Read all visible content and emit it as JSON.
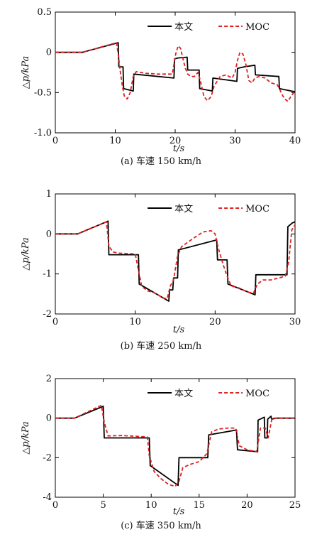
{
  "chart_data": [
    {
      "type": "line",
      "caption": "(a) 车速 150 km/h",
      "xlabel": "t/s",
      "ylabel": "△p/kPa",
      "xlim": [
        0,
        40
      ],
      "ylim": [
        -1.0,
        0.5
      ],
      "xticks": [
        0,
        10,
        20,
        30,
        40
      ],
      "xtick_labels": [
        "0",
        "10",
        "20",
        "30",
        "40"
      ],
      "yticks": [
        0.5,
        0,
        -0.5,
        -1.0
      ],
      "ytick_labels": [
        "0.5",
        "0",
        "-0.5",
        "-1.0"
      ],
      "legend_position": "top-right",
      "series": [
        {
          "name": "本文",
          "color": "#000000",
          "style": "solid",
          "x": [
            0,
            4.5,
            10.5,
            10.6,
            11.3,
            11.4,
            13.0,
            13.1,
            19.8,
            19.9,
            20.5,
            22.0,
            22.1,
            24.0,
            24.1,
            26.2,
            26.3,
            30.3,
            30.4,
            31.5,
            33.3,
            33.4,
            37.3,
            37.4,
            40
          ],
          "y": [
            0,
            0,
            0.12,
            -0.18,
            -0.18,
            -0.45,
            -0.48,
            -0.27,
            -0.32,
            -0.08,
            -0.07,
            -0.06,
            -0.22,
            -0.22,
            -0.45,
            -0.48,
            -0.32,
            -0.36,
            -0.2,
            -0.18,
            -0.16,
            -0.28,
            -0.3,
            -0.45,
            -0.49
          ]
        },
        {
          "name": "MOC",
          "color": "#dd2222",
          "style": "dashed",
          "x": [
            0,
            4.5,
            10.2,
            10.5,
            10.8,
            11.2,
            11.5,
            12.0,
            12.5,
            13.0,
            13.5,
            15,
            17,
            19.5,
            19.8,
            20.1,
            20.5,
            20.9,
            21.3,
            21.7,
            22.1,
            22.6,
            23.2,
            23.8,
            24.2,
            24.8,
            25.4,
            26.0,
            26.5,
            27.5,
            28.5,
            29.5,
            30.0,
            30.4,
            30.8,
            31.3,
            31.8,
            32.3,
            32.8,
            33.3,
            34.0,
            35.0,
            36.0,
            37.0,
            37.4,
            37.8,
            38.3,
            38.8,
            39.3,
            40
          ],
          "y": [
            0,
            0,
            0.12,
            -0.02,
            -0.22,
            -0.42,
            -0.54,
            -0.58,
            -0.5,
            -0.3,
            -0.24,
            -0.26,
            -0.27,
            -0.27,
            -0.15,
            -0.02,
            0.08,
            0.05,
            -0.08,
            -0.2,
            -0.27,
            -0.3,
            -0.3,
            -0.25,
            -0.35,
            -0.55,
            -0.6,
            -0.55,
            -0.42,
            -0.3,
            -0.28,
            -0.32,
            -0.25,
            -0.1,
            0.0,
            -0.02,
            -0.15,
            -0.35,
            -0.38,
            -0.32,
            -0.3,
            -0.32,
            -0.38,
            -0.4,
            -0.45,
            -0.52,
            -0.58,
            -0.61,
            -0.55,
            -0.48
          ]
        }
      ]
    },
    {
      "type": "line",
      "caption": "(b) 车速 250 km/h",
      "xlabel": "t/s",
      "ylabel": "△p/kPa",
      "xlim": [
        0,
        30
      ],
      "ylim": [
        -2,
        1
      ],
      "xticks": [
        0,
        10,
        20,
        30
      ],
      "xtick_labels": [
        "0",
        "10",
        "20",
        "30"
      ],
      "yticks": [
        1,
        0,
        -1,
        -2
      ],
      "ytick_labels": [
        "1",
        "0",
        "-1",
        "-2"
      ],
      "legend_position": "top-right",
      "series": [
        {
          "name": "本文",
          "color": "#000000",
          "style": "solid",
          "x": [
            0,
            2.8,
            6.6,
            6.7,
            10.4,
            10.5,
            14.2,
            14.3,
            14.7,
            14.8,
            15.3,
            15.4,
            20.2,
            20.3,
            21.5,
            21.6,
            25.0,
            25.1,
            29.0,
            29.1,
            29.7,
            30
          ],
          "y": [
            0,
            0,
            0.32,
            -0.52,
            -0.52,
            -1.25,
            -1.68,
            -1.4,
            -1.4,
            -1.1,
            -1.1,
            -0.4,
            -0.15,
            -0.65,
            -0.65,
            -1.25,
            -1.52,
            -1.02,
            -1.02,
            0.18,
            0.28,
            0.3
          ],
          "_note": ""
        },
        {
          "name": "MOC",
          "color": "#dd2222",
          "style": "dashed",
          "x": [
            0,
            2.8,
            6.4,
            6.7,
            7.2,
            8.0,
            10.0,
            10.3,
            10.8,
            11.5,
            12.5,
            13.5,
            14.0,
            14.4,
            14.8,
            15.3,
            15.8,
            16.5,
            17.5,
            18.5,
            19.5,
            20.0,
            20.4,
            20.9,
            21.4,
            22.0,
            23.0,
            24.0,
            24.8,
            25.3,
            26.0,
            27.0,
            28.0,
            28.8,
            29.2,
            29.6,
            30
          ],
          "y": [
            0,
            0,
            0.3,
            -0.3,
            -0.45,
            -0.48,
            -0.5,
            -0.8,
            -1.3,
            -1.42,
            -1.48,
            -1.6,
            -1.62,
            -1.3,
            -1.15,
            -0.55,
            -0.32,
            -0.22,
            -0.08,
            0.05,
            0.08,
            0.0,
            -0.35,
            -0.7,
            -1.0,
            -1.3,
            -1.35,
            -1.45,
            -1.48,
            -1.25,
            -1.15,
            -1.15,
            -1.1,
            -1.05,
            -0.7,
            0.1,
            0.22
          ]
        }
      ]
    },
    {
      "type": "line",
      "caption": "(c) 车速 350 km/h",
      "xlabel": "t/s",
      "ylabel": "△p/kPa",
      "xlim": [
        0,
        25
      ],
      "ylim": [
        -4,
        2
      ],
      "xticks": [
        0,
        5,
        10,
        15,
        20,
        25
      ],
      "xtick_labels": [
        "0",
        "5",
        "10",
        "15",
        "20",
        "25"
      ],
      "yticks": [
        2,
        0,
        -2,
        -4
      ],
      "ytick_labels": [
        "2",
        "0",
        "-2",
        "-4"
      ],
      "legend_position": "top-right",
      "series": [
        {
          "name": "本文",
          "color": "#000000",
          "style": "solid",
          "x": [
            0,
            2.0,
            5.0,
            5.1,
            9.8,
            9.9,
            12.8,
            12.9,
            15.9,
            16.0,
            18.9,
            19.0,
            21.1,
            21.15,
            21.8,
            21.85,
            22.1,
            22.15,
            22.5,
            22.55,
            23.0,
            25
          ],
          "y": [
            0,
            0,
            0.6,
            -1.0,
            -1.0,
            -2.4,
            -3.4,
            -2.0,
            -2.0,
            -0.85,
            -0.6,
            -1.6,
            -1.7,
            -0.1,
            0.05,
            -1.0,
            -1.0,
            -0.05,
            0.1,
            -0.05,
            0,
            0
          ]
        },
        {
          "name": "MOC",
          "color": "#dd2222",
          "style": "dashed",
          "x": [
            0,
            2.0,
            4.8,
            5.1,
            5.5,
            7.0,
            9.6,
            9.8,
            10.3,
            11.0,
            11.8,
            12.5,
            12.9,
            13.3,
            14.0,
            15.0,
            15.8,
            16.3,
            17.0,
            18.0,
            18.8,
            19.2,
            20.0,
            21.0,
            21.4,
            21.9,
            22.2,
            22.6,
            23.0,
            25
          ],
          "y": [
            0,
            0,
            0.65,
            -0.2,
            -0.9,
            -0.88,
            -0.95,
            -1.9,
            -2.7,
            -3.05,
            -3.35,
            -3.45,
            -3.2,
            -2.5,
            -2.35,
            -2.2,
            -1.8,
            -0.7,
            -0.55,
            -0.5,
            -0.5,
            -1.4,
            -1.6,
            -1.7,
            -0.5,
            -0.5,
            -1.0,
            0.0,
            0,
            0
          ]
        }
      ]
    }
  ]
}
